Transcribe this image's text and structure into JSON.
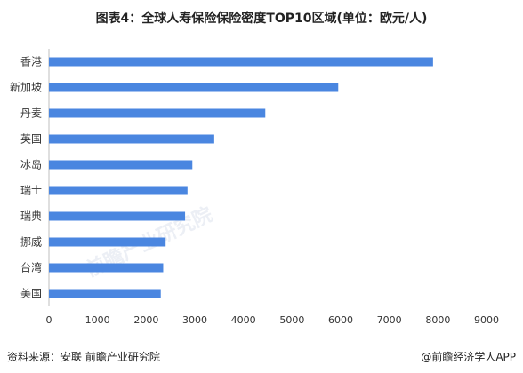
{
  "header": {
    "title": "图表4：全球人寿保险保险密度TOP10区域(单位：欧元/人)"
  },
  "footer": {
    "source": "资料来源：安联 前瞻产业研究院",
    "brand": "@前瞻经济学人APP"
  },
  "watermark": {
    "text": "前瞻产业研究院"
  },
  "chart_data": {
    "type": "bar",
    "orientation": "horizontal",
    "categories": [
      "香港",
      "新加坡",
      "丹麦",
      "英国",
      "冰岛",
      "瑞士",
      "瑞典",
      "挪威",
      "台湾",
      "美国"
    ],
    "values": [
      7900,
      5950,
      4450,
      3400,
      2950,
      2850,
      2800,
      2400,
      2350,
      2300
    ],
    "xlim": [
      0,
      9000
    ],
    "xticks": [
      "0",
      "1000",
      "2000",
      "3000",
      "4000",
      "5000",
      "6000",
      "7000",
      "8000",
      "9000"
    ],
    "bar_color": "#4a86e0",
    "grid": false
  }
}
